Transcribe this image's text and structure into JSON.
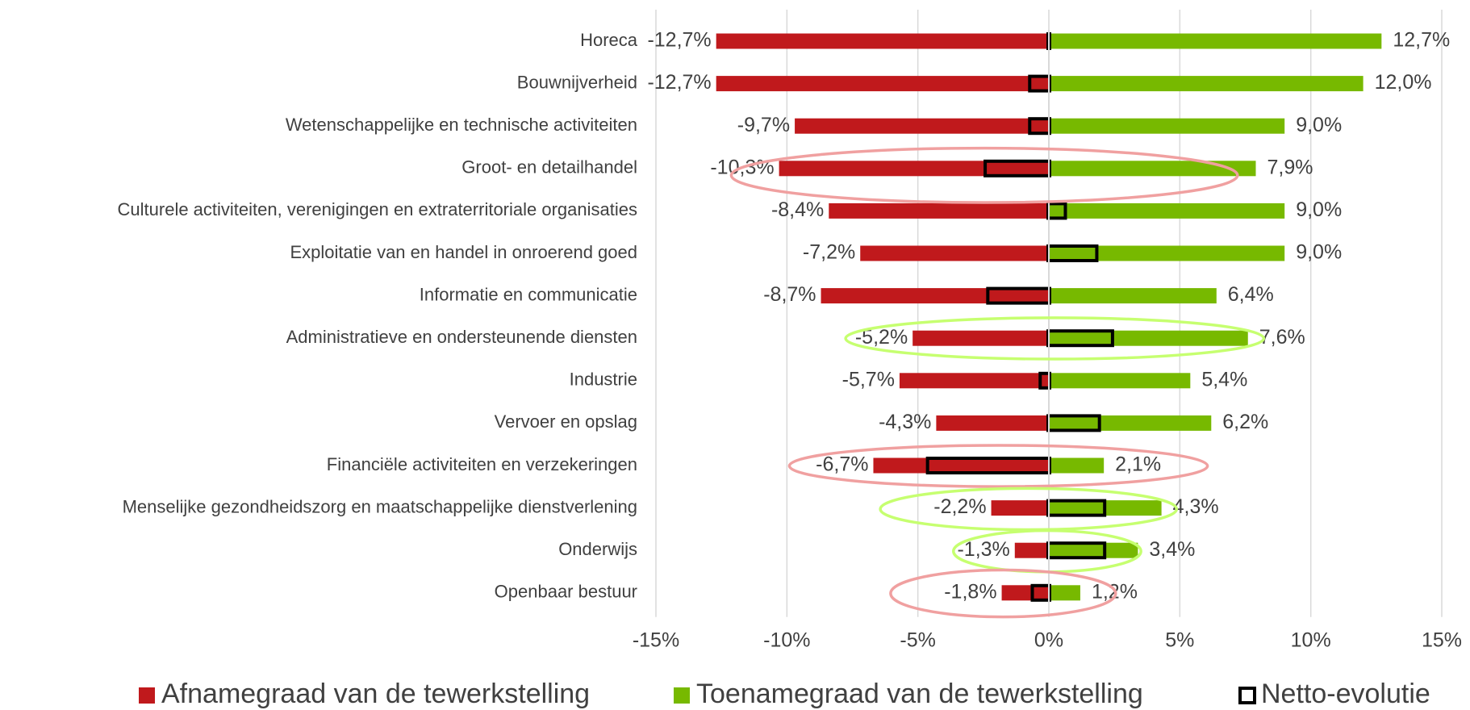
{
  "chart_data": {
    "type": "diverging-bar",
    "categories": [
      "Horeca",
      "Bouwnijverheid",
      "Wetenschappelijke en technische activiteiten",
      "Groot- en detailhandel",
      "Culturele activiteiten, verenigingen en extraterritoriale organisaties",
      "Exploitatie van en handel in onroerend goed",
      "Informatie en communicatie",
      "Administratieve en ondersteunende diensten",
      "Industrie",
      "Vervoer en opslag",
      "Financiële activiteiten en verzekeringen",
      "Menselijke gezondheidszorg en maatschappelijke dienstverlening",
      "Onderwijs",
      "Openbaar bestuur"
    ],
    "series": [
      {
        "name": "Afnamegraad van de tewerkstelling",
        "color": "#c0191c",
        "values": [
          -12.7,
          -12.7,
          -9.7,
          -10.3,
          -8.4,
          -7.2,
          -8.7,
          -5.2,
          -5.7,
          -4.3,
          -6.7,
          -2.2,
          -1.3,
          -1.8
        ],
        "value_labels": [
          "-12,7%",
          "-12,7%",
          "-9,7%",
          "-10,3%",
          "-8,4%",
          "-7,2%",
          "-8,7%",
          "-5,2%",
          "-5,7%",
          "-4,3%",
          "-6,7%",
          "-2,2%",
          "-1,3%",
          "-1,8%"
        ]
      },
      {
        "name": "Toenamegraad van de tewerkstelling",
        "color": "#77b900",
        "values": [
          12.7,
          12.0,
          9.0,
          7.9,
          9.0,
          9.0,
          6.4,
          7.6,
          5.4,
          6.2,
          2.1,
          4.3,
          3.4,
          1.2
        ],
        "value_labels": [
          "12,7%",
          "12,0%",
          "9,0%",
          "7,9%",
          "9,0%",
          "9,0%",
          "6,4%",
          "7,6%",
          "5,4%",
          "6,2%",
          "2,1%",
          "4,3%",
          "3,4%",
          "1,2%"
        ]
      },
      {
        "name": "Netto-evolutie",
        "color": "#000000",
        "values": [
          0.0,
          -0.7,
          -0.7,
          -2.4,
          0.6,
          1.8,
          -2.3,
          2.4,
          -0.3,
          1.9,
          -4.6,
          2.1,
          2.1,
          -0.6
        ]
      }
    ],
    "xlim": [
      -15,
      15
    ],
    "xticks": [
      {
        "value": -15,
        "label": "-15%"
      },
      {
        "value": -10,
        "label": "-10%"
      },
      {
        "value": -5,
        "label": "-5%"
      },
      {
        "value": 0,
        "label": "0%"
      },
      {
        "value": 5,
        "label": "5%"
      },
      {
        "value": 10,
        "label": "10%"
      },
      {
        "value": 15,
        "label": "15%"
      }
    ],
    "grid": true
  }
}
